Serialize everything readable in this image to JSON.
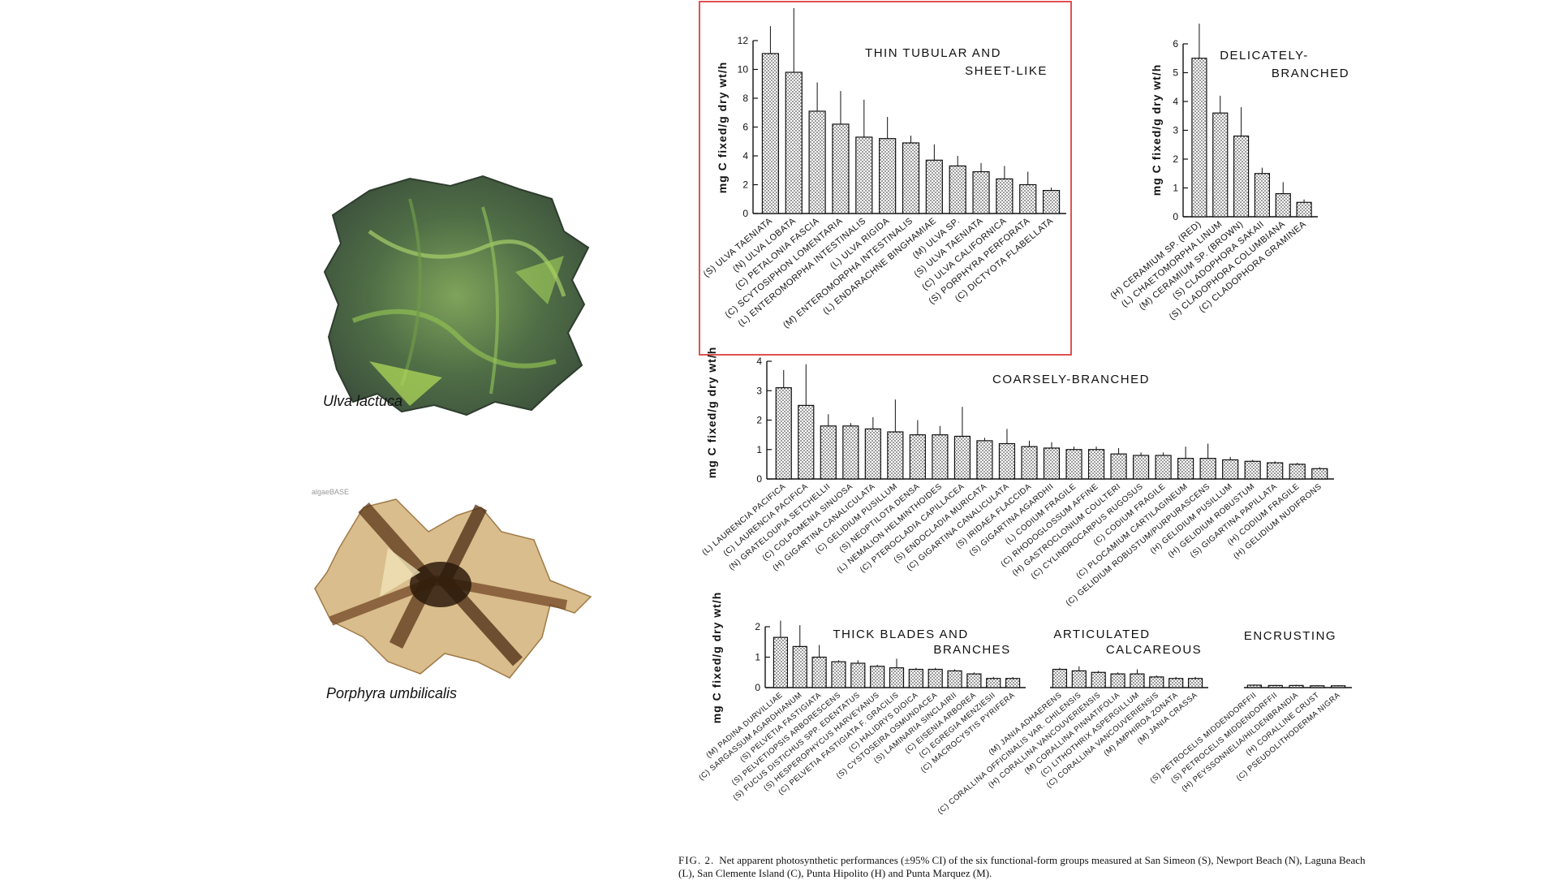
{
  "photos": [
    {
      "label": "Ulva lactuca",
      "icon": "ulva-seaweed-photo"
    },
    {
      "label": "Porphyra umbilicalis",
      "icon": "porphyra-seaweed-photo",
      "watermark": "algaeBASE"
    }
  ],
  "caption": {
    "lead": "FIG. 2.",
    "text": "Net apparent photosynthetic performances (±95% CI) of the six functional-form groups measured at San Simeon (S), Newport Beach (N), Laguna Beach (L), San Clemente Island (C), Punta Hipolito (H) and Punta Marquez (M)."
  },
  "colors": {
    "highlight_box": "#e05252",
    "bar_fill": "#d9d9d9",
    "ink": "#111111"
  },
  "chart_data": [
    {
      "type": "bar",
      "title": "THIN TUBULAR AND SHEET-LIKE",
      "ylabel": "mg C fixed/g dry wt/h",
      "ylim": [
        0,
        12
      ],
      "yticks": [
        0,
        2,
        4,
        6,
        8,
        10,
        12
      ],
      "highlighted": true,
      "categories": [
        "(S) ULVA TAENIATA",
        "(N) ULVA LOBATA",
        "(C) PETALONIA FASCIA",
        "(C) SCYTOSIPHON LOMENTARIA",
        "(L) ENTEROMORPHA INTESTINALIS",
        "(L) ULVA RIGIDA",
        "(M) ENTEROMORPHA INTESTINALIS",
        "(L) ENDARACHNE BINGHAMIAE",
        "(M) ULVA SP.",
        "(S) ULVA TAENIATA",
        "(C) ULVA CALIFORNICA",
        "(S) PORPHYRA PERFORATA",
        "(C) DICTYOTA FLABELLATA"
      ],
      "values": [
        11.1,
        9.8,
        7.1,
        6.2,
        5.3,
        5.2,
        4.9,
        3.7,
        3.3,
        2.9,
        2.4,
        2.0,
        1.6
      ],
      "errors": [
        1.9,
        4.6,
        2.0,
        2.3,
        2.6,
        1.5,
        0.5,
        1.1,
        0.7,
        0.6,
        0.9,
        0.9,
        0.2
      ]
    },
    {
      "type": "bar",
      "title": "DELICATELY-BRANCHED",
      "ylabel": "mg C fixed/g dry wt/h",
      "ylim": [
        0,
        6
      ],
      "yticks": [
        0,
        1,
        2,
        3,
        4,
        5,
        6
      ],
      "categories": [
        "(H) CERAMIUM SP. (RED)",
        "(L) CHAETOMORPHA LINUM",
        "(M) CERAMIUM SP. (BROWN)",
        "(S) CLADOPHORA SAKAII",
        "(S) CLADOPHORA COLUMBIANA",
        "(C) CLADOPHORA GRAMINEA"
      ],
      "values": [
        5.5,
        3.6,
        2.8,
        1.5,
        0.8,
        0.5
      ],
      "errors": [
        1.2,
        0.6,
        1.0,
        0.2,
        0.4,
        0.1
      ]
    },
    {
      "type": "bar",
      "title": "COARSELY-BRANCHED",
      "ylabel": "mg C fixed/g dry wt/h",
      "ylim": [
        0,
        4
      ],
      "yticks": [
        0,
        1,
        2,
        3,
        4
      ],
      "categories": [
        "(L) LAURENCIA PACIFICA",
        "(C) LAURENCIA PACIFICA",
        "(N) GRATELOUPIA SETCHELLII",
        "(C) COLPOMENIA SINUOSA",
        "(H) GIGARTINA CANALICULATA",
        "(C) GELIDIUM PUSILLUM",
        "(S) NEOPTILOTA DENSA",
        "(L) NEMALION HELMINTHOIDES",
        "(C) PTEROCLADIA CAPILLACEA",
        "(S) ENDOCLADIA MURICATA",
        "(C) GIGARTINA CANALICULATA",
        "(S) IRIDAEA FLACCIDA",
        "(S) GIGARTINA AGARDHII",
        "(L) CODIUM FRAGILE",
        "(C) RHODOGLOSSUM AFFINE",
        "(H) GASTROCLONIUM COULTERI",
        "(C) CYLINDROCARPUS RUGOSUS",
        "(C) CODIUM FRAGILE",
        "(C) PLOCAMIUM CARTILAGINEUM",
        "(C) GELIDIUM ROBUSTUM/PURPURASCENS",
        "(H) GELIDIUM PUSILLUM",
        "(H) GELIDIUM ROBUSTUM",
        "(S) GIGARTINA PAPILLATA",
        "(H) CODIUM FRAGILE",
        "(H) GELIDIUM NUDIFRONS"
      ],
      "values": [
        3.1,
        2.5,
        1.8,
        1.8,
        1.7,
        1.6,
        1.5,
        1.5,
        1.45,
        1.3,
        1.2,
        1.1,
        1.05,
        1.0,
        1.0,
        0.85,
        0.8,
        0.8,
        0.7,
        0.7,
        0.65,
        0.6,
        0.55,
        0.5,
        0.35
      ],
      "errors": [
        0.6,
        1.4,
        0.4,
        0.1,
        0.4,
        1.1,
        0.5,
        0.3,
        1.0,
        0.1,
        0.5,
        0.2,
        0.2,
        0.1,
        0.1,
        0.2,
        0.1,
        0.1,
        0.4,
        0.5,
        0.1,
        0.05,
        0.05,
        0.05,
        0.05
      ]
    },
    {
      "type": "bar",
      "title": "THICK BLADES AND BRANCHES",
      "ylabel": "mg C fixed/g dry wt/h",
      "ylim": [
        0,
        2
      ],
      "yticks": [
        0,
        1,
        2
      ],
      "categories": [
        "(M) PADINA DURVILLIAE",
        "(C) SARGASSUM AGARDHIANUM",
        "(S) PELVETIA FASTIGIATA",
        "(S) PELVETIOPSIS ARBORESCENS",
        "(S) FUCUS DISTICHUS SPP. EDENTATUS",
        "(S) HESPEROPHYCUS HARVEYANUS",
        "(C) PELVETIA FASTIGIATA F. GRACILIS",
        "(C) HALIDRYS DIOICA",
        "(S) CYSTOSEIRA OSMUNDACEA",
        "(S) LAMINARIA SINCLAIRII",
        "(C) EISENIA ARBOREA",
        "(C) EGREGIA MENZIESII",
        "(C) MACROCYSTIS PYRIFERA"
      ],
      "values": [
        1.65,
        1.35,
        1.0,
        0.85,
        0.8,
        0.7,
        0.65,
        0.6,
        0.6,
        0.55,
        0.45,
        0.3,
        0.3
      ],
      "errors": [
        0.55,
        0.7,
        0.4,
        0.05,
        0.1,
        0.05,
        0.3,
        0.05,
        0.05,
        0.05,
        0.05,
        0.05,
        0.05
      ]
    },
    {
      "type": "bar",
      "title": "ARTICULATED CALCAREOUS",
      "ylabel": "",
      "ylim": [
        0,
        2
      ],
      "categories": [
        "(M) JANIA ADHAERENS",
        "(C) CORALLINA OFFICINALIS VAR. CHILENSIS",
        "(H) CORALLINA VANCOUVERIENSIS",
        "(M) CORALLINA PINNATIFOLIA",
        "(C) LITHOTHRIX ASPERGILLUM",
        "(C) CORALLINA VANCOUVERIENSIS",
        "(M) AMPHIROA ZONATA",
        "(M) JANIA CRASSA"
      ],
      "values": [
        0.6,
        0.55,
        0.5,
        0.45,
        0.45,
        0.35,
        0.3,
        0.3
      ],
      "errors": [
        0.05,
        0.15,
        0.05,
        0.05,
        0.15,
        0.05,
        0.05,
        0.05
      ]
    },
    {
      "type": "bar",
      "title": "ENCRUSTING",
      "ylabel": "",
      "ylim": [
        0,
        2
      ],
      "categories": [
        "(S) PETROCELIS MIDDENDORFFII",
        "(S) PETROCELIS MIDDENDORFFII",
        "(H) PEYSSONNELIA/HILDENBRANDIA",
        "(H) CORALLINE CRUST",
        "(C) PSEUDOLITHODERMA NIGRA"
      ],
      "values": [
        0.08,
        0.07,
        0.07,
        0.06,
        0.06
      ],
      "errors": [
        0.02,
        0.02,
        0.02,
        0.02,
        0.02
      ]
    }
  ]
}
